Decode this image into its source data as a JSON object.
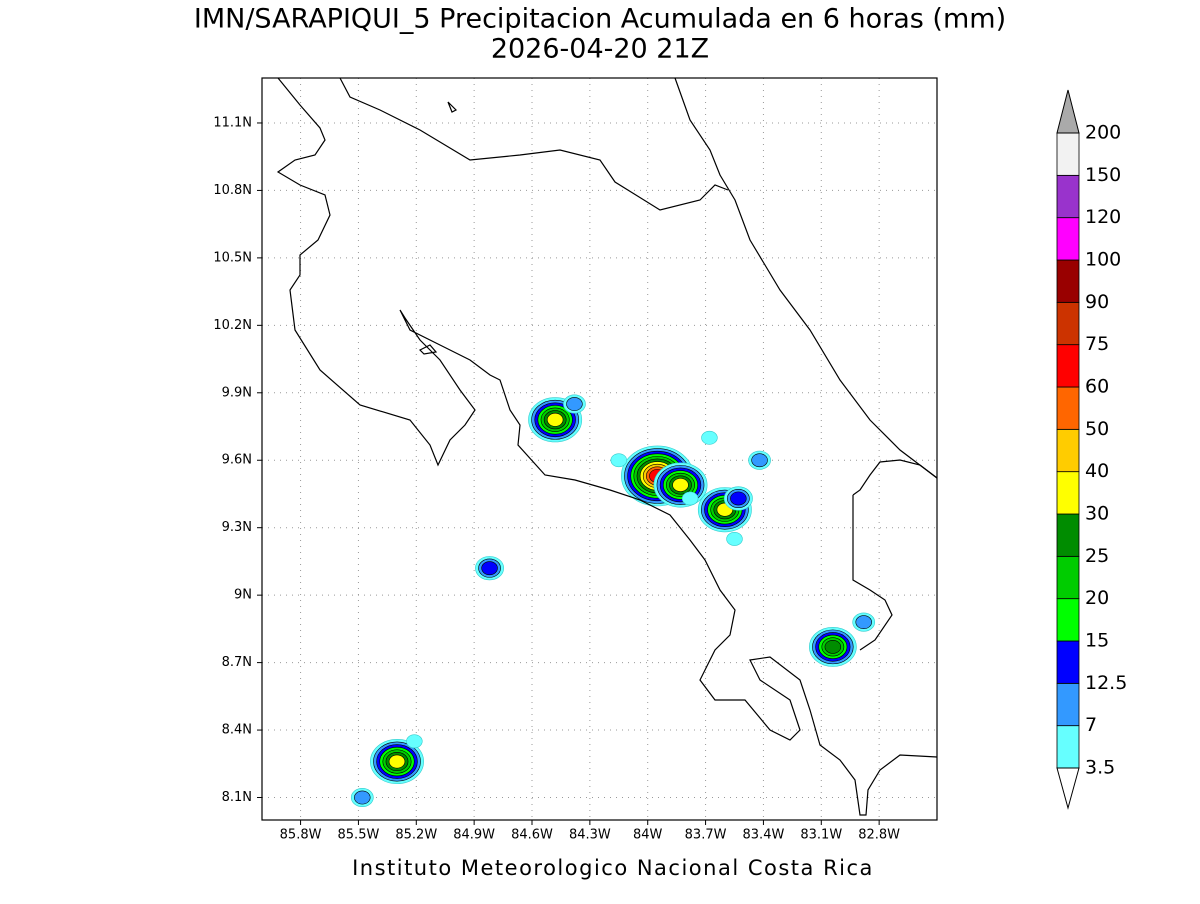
{
  "map": {
    "title": "IMN/SARAPIQUI_5 Precipitacion Acumulada en 6 horas (mm)",
    "subtitle": "2026-04-20 21Z",
    "credit": "Instituto Meteorologico Nacional Costa Rica",
    "xlim": [
      -86.0,
      -82.5
    ],
    "ylim": [
      8.0,
      11.3
    ],
    "grid": true,
    "xticks": [
      {
        "value": -85.8,
        "label": "85.8W"
      },
      {
        "value": -85.5,
        "label": "85.5W"
      },
      {
        "value": -85.2,
        "label": "85.2W"
      },
      {
        "value": -84.9,
        "label": "84.9W"
      },
      {
        "value": -84.6,
        "label": "84.6W"
      },
      {
        "value": -84.3,
        "label": "84.3W"
      },
      {
        "value": -84,
        "label": "84W"
      },
      {
        "value": -83.7,
        "label": "83.7W"
      },
      {
        "value": -83.4,
        "label": "83.4W"
      },
      {
        "value": -83.1,
        "label": "83.1W"
      },
      {
        "value": -82.8,
        "label": "82.8W"
      }
    ],
    "yticks": [
      {
        "value": 8.1,
        "label": "8.1N"
      },
      {
        "value": 8.4,
        "label": "8.4N"
      },
      {
        "value": 8.7,
        "label": "8.7N"
      },
      {
        "value": 9,
        "label": "9N"
      },
      {
        "value": 9.3,
        "label": "9.3N"
      },
      {
        "value": 9.6,
        "label": "9.6N"
      },
      {
        "value": 9.9,
        "label": "9.9N"
      },
      {
        "value": 10.2,
        "label": "10.2N"
      },
      {
        "value": 10.5,
        "label": "10.5N"
      },
      {
        "value": 10.8,
        "label": "10.8N"
      },
      {
        "value": 11.1,
        "label": "11.1N"
      }
    ],
    "colorbar": {
      "levels": [
        3.5,
        7,
        12.5,
        15,
        20,
        25,
        30,
        40,
        50,
        60,
        75,
        90,
        100,
        120,
        150,
        200
      ],
      "colors": [
        "#66ffff",
        "#3399ff",
        "#0000ff",
        "#00ff00",
        "#00cc00",
        "#008c00",
        "#ffff00",
        "#ffcc00",
        "#ff6600",
        "#ff0000",
        "#cc3300",
        "#990000",
        "#ff00ff",
        "#9933cc",
        "#f2f2f2"
      ],
      "over_color": "#aaaaaa",
      "under_color": "#ffffff"
    },
    "cells": [
      {
        "lon": -84.48,
        "lat": 9.78,
        "peak": 30
      },
      {
        "lon": -84.38,
        "lat": 9.85,
        "peak": 7
      },
      {
        "lon": -83.95,
        "lat": 9.53,
        "peak": 60
      },
      {
        "lon": -83.83,
        "lat": 9.49,
        "peak": 30
      },
      {
        "lon": -83.6,
        "lat": 9.38,
        "peak": 30
      },
      {
        "lon": -83.53,
        "lat": 9.43,
        "peak": 12.5
      },
      {
        "lon": -83.42,
        "lat": 9.6,
        "peak": 7
      },
      {
        "lon": -84.82,
        "lat": 9.12,
        "peak": 12.5
      },
      {
        "lon": -85.3,
        "lat": 8.26,
        "peak": 30
      },
      {
        "lon": -85.48,
        "lat": 8.1,
        "peak": 7
      },
      {
        "lon": -83.04,
        "lat": 8.77,
        "peak": 25
      },
      {
        "lon": -82.88,
        "lat": 8.88,
        "peak": 7
      },
      {
        "lon": -84.15,
        "lat": 9.6,
        "peak": 3.5
      },
      {
        "lon": -83.78,
        "lat": 9.43,
        "peak": 3.5
      },
      {
        "lon": -83.55,
        "lat": 9.25,
        "peak": 3.5
      },
      {
        "lon": -83.68,
        "lat": 9.7,
        "peak": 3.5
      },
      {
        "lon": -85.21,
        "lat": 8.35,
        "peak": 3.5
      }
    ]
  }
}
